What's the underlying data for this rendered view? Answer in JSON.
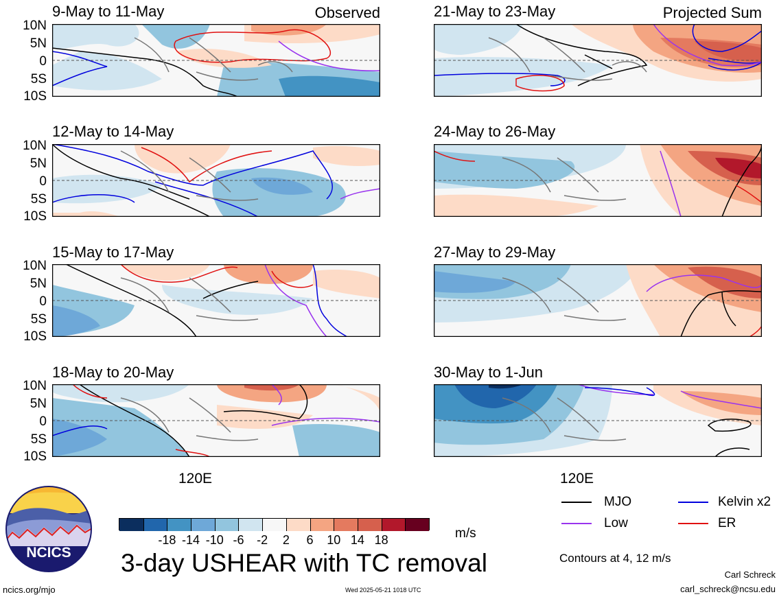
{
  "panels": [
    {
      "title": "9-May to 11-May",
      "tag": "Observed"
    },
    {
      "title": "12-May to 14-May",
      "tag": ""
    },
    {
      "title": "15-May to 17-May",
      "tag": ""
    },
    {
      "title": "18-May to 20-May",
      "tag": ""
    },
    {
      "title": "21-May to 23-May",
      "tag": "Projected Sum"
    },
    {
      "title": "24-May to 26-May",
      "tag": ""
    },
    {
      "title": "27-May to 29-May",
      "tag": ""
    },
    {
      "title": "30-May to 1-Jun",
      "tag": ""
    }
  ],
  "lat_labels": [
    "10N",
    "5N",
    "0",
    "5S",
    "10S"
  ],
  "lon_label": "120E",
  "colorbar": {
    "ticks": [
      "-18",
      "-14",
      "-10",
      "-6",
      "-2",
      "2",
      "6",
      "10",
      "14",
      "18"
    ],
    "colors": [
      "#0b2e5e",
      "#2166ac",
      "#4393c3",
      "#6ea8d8",
      "#92c5de",
      "#d1e5f0",
      "#f7f7f7",
      "#fddbc7",
      "#f4a582",
      "#e47a5f",
      "#d6604d",
      "#b2182b",
      "#67001f"
    ],
    "unit": "m/s"
  },
  "legend": {
    "items": [
      {
        "label": "MJO",
        "color": "#000000"
      },
      {
        "label": "Kelvin x2",
        "color": "#0000dd"
      },
      {
        "label": "Low",
        "color": "#9933ee"
      },
      {
        "label": "ER",
        "color": "#e01010"
      }
    ],
    "note": "Contours at 4, 12 m/s"
  },
  "main_title": "3-day USHEAR with TC removal",
  "logo_text": "NCICS",
  "footer": {
    "left": "ncics.org/mjo",
    "center": "Wed 2025-05-21 1018 UTC",
    "author": "Carl Schreck",
    "email": "carl_schreck@ncsu.edu"
  }
}
